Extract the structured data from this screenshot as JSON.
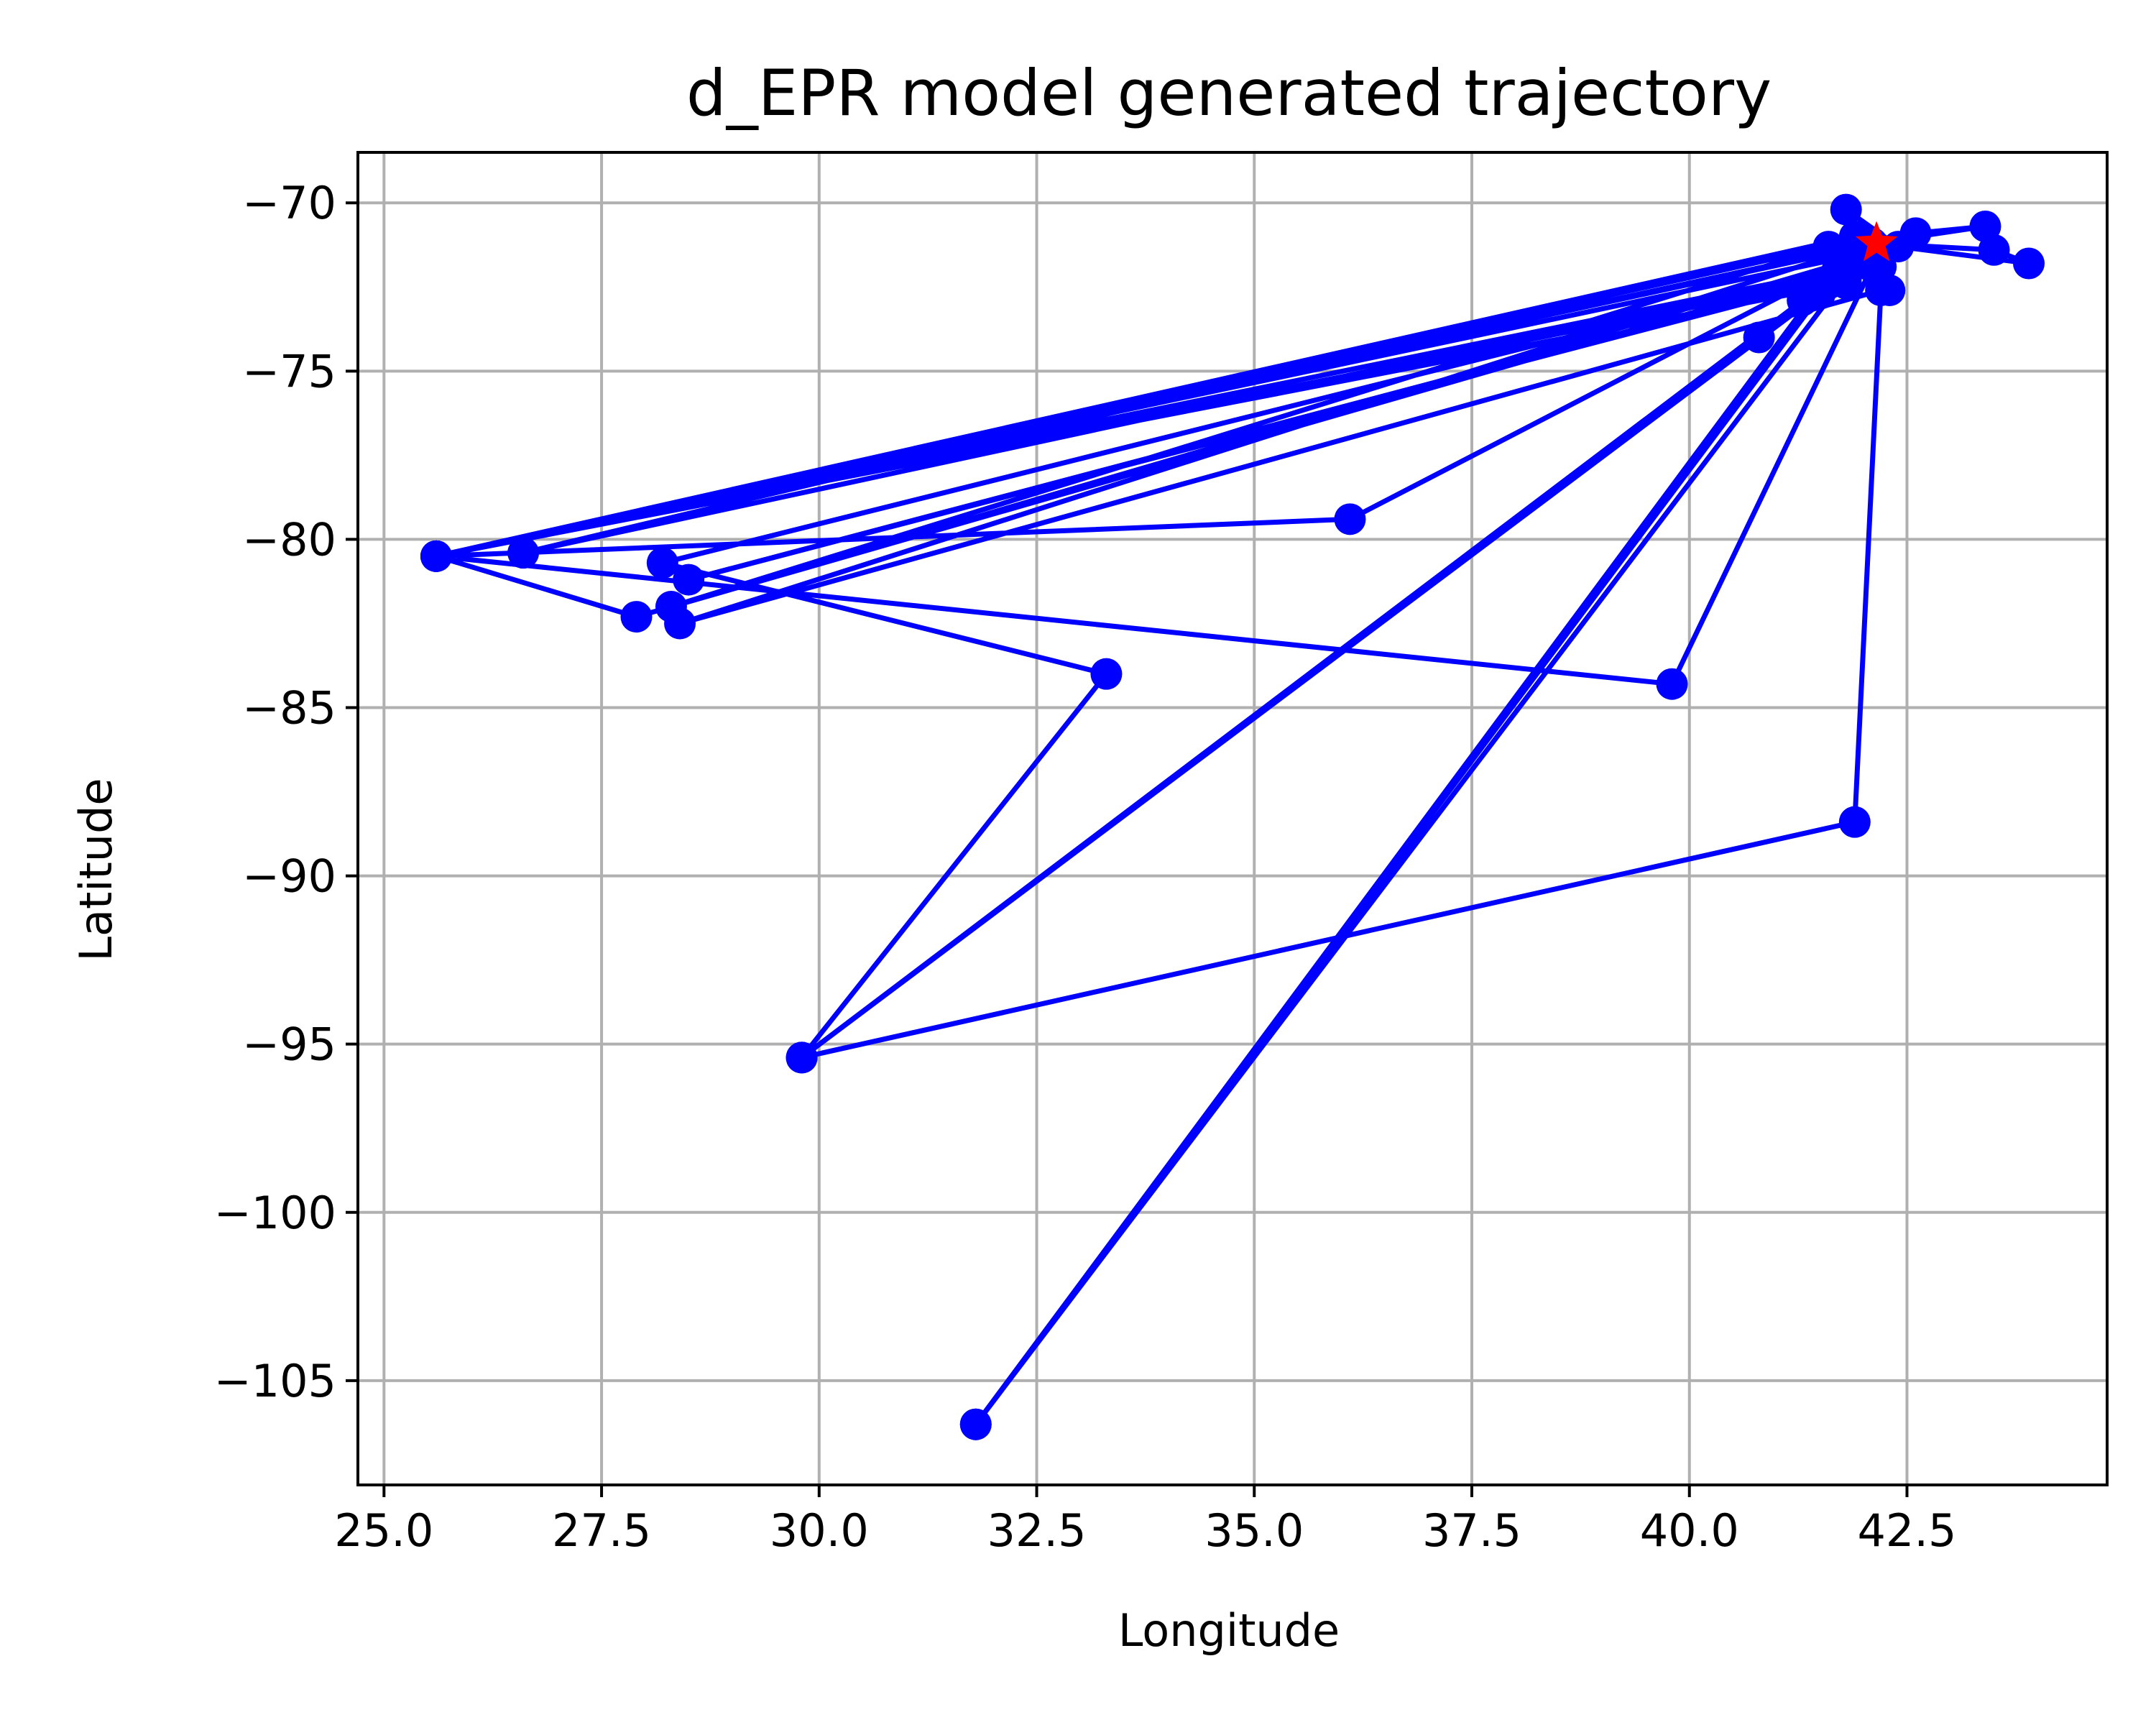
{
  "chart_data": {
    "type": "line",
    "title": "d_EPR model generated trajectory",
    "xlabel": "Longitude",
    "ylabel": "Latitude",
    "xlim": [
      24.7,
      44.8
    ],
    "ylim": [
      -108.1,
      -68.5
    ],
    "xticks": [
      25.0,
      27.5,
      30.0,
      32.5,
      35.0,
      37.5,
      40.0,
      42.5
    ],
    "xtick_labels": [
      "25.0",
      "27.5",
      "30.0",
      "32.5",
      "35.0",
      "37.5",
      "40.0",
      "42.5"
    ],
    "yticks": [
      -70,
      -75,
      -80,
      -85,
      -90,
      -95,
      -100,
      -105
    ],
    "ytick_labels": [
      "−70",
      "−75",
      "−80",
      "−85",
      "−90",
      "−95",
      "−100",
      "−105"
    ],
    "grid": true,
    "series": [
      {
        "color": "#0000ff",
        "marker": "circle",
        "points": [
          [
            41.8,
            -72.4
          ],
          [
            25.6,
            -80.5
          ],
          [
            41.9,
            -71.0
          ],
          [
            26.6,
            -80.4
          ],
          [
            41.7,
            -72.0
          ],
          [
            25.6,
            -80.5
          ],
          [
            42.0,
            -71.5
          ],
          [
            36.1,
            -79.4
          ],
          [
            25.6,
            -80.5
          ],
          [
            42.1,
            -71.2
          ],
          [
            28.4,
            -82.5
          ],
          [
            42.2,
            -72.6
          ],
          [
            41.9,
            -88.4
          ],
          [
            29.8,
            -95.4
          ],
          [
            33.3,
            -84.0
          ],
          [
            28.2,
            -80.7
          ],
          [
            42.0,
            -71.8
          ],
          [
            27.9,
            -82.3
          ],
          [
            25.6,
            -80.5
          ],
          [
            41.8,
            -72.2
          ],
          [
            28.5,
            -81.2
          ],
          [
            42.1,
            -71.9
          ],
          [
            39.8,
            -84.3
          ],
          [
            25.6,
            -80.5
          ],
          [
            41.6,
            -71.3
          ],
          [
            28.3,
            -82.0
          ],
          [
            42.0,
            -71.6
          ],
          [
            40.8,
            -74.0
          ],
          [
            29.8,
            -95.4
          ],
          [
            41.6,
            -72.4
          ],
          [
            31.8,
            -106.3
          ],
          [
            42.0,
            -71.5
          ],
          [
            42.3,
            -72.6
          ],
          [
            41.9,
            -71.4
          ],
          [
            42.6,
            -70.9
          ],
          [
            43.4,
            -70.7
          ],
          [
            42.1,
            -71.2
          ],
          [
            43.5,
            -71.4
          ],
          [
            43.9,
            -71.8
          ],
          [
            42.4,
            -71.3
          ],
          [
            41.8,
            -70.2
          ],
          [
            42.2,
            -71.9
          ],
          [
            41.3,
            -72.9
          ],
          [
            29.8,
            -95.4
          ],
          [
            41.5,
            -72.7
          ],
          [
            31.8,
            -106.3
          ],
          [
            41.9,
            -71.1
          ],
          [
            25.6,
            -80.5
          ],
          [
            42.0,
            -71.3
          ]
        ]
      }
    ],
    "highlight": {
      "x": 42.15,
      "y": -71.2,
      "marker": "star",
      "color": "#ff0000"
    }
  }
}
